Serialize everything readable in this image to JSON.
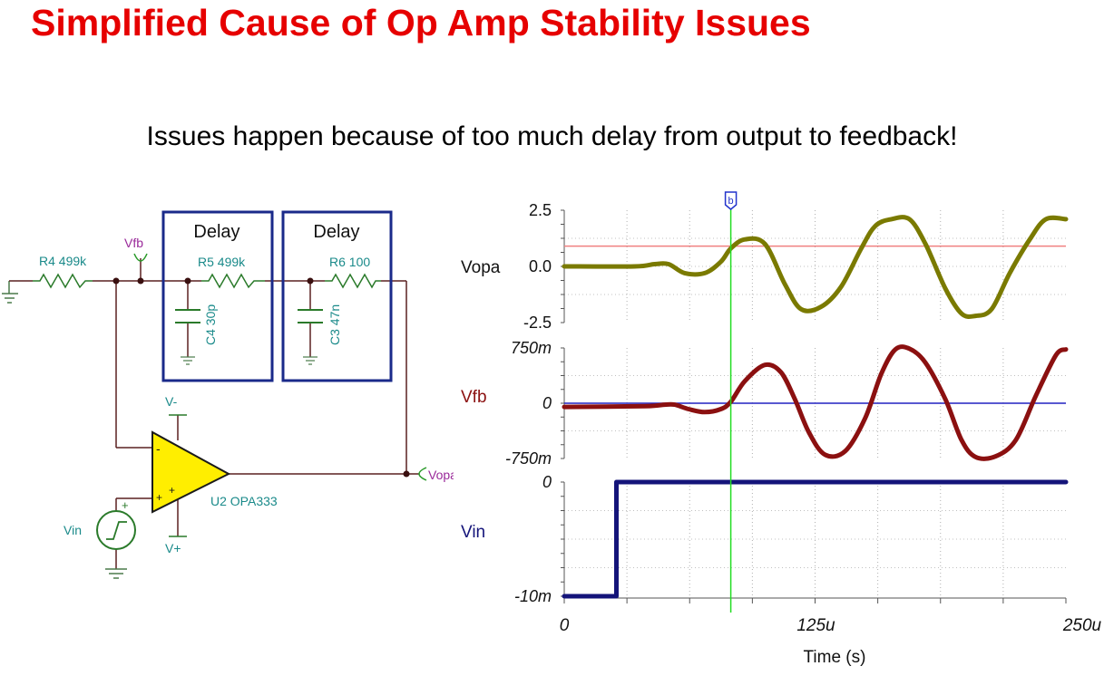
{
  "title": "Simplified Cause of Op Amp Stability Issues",
  "subtitle": "Issues happen because of too much delay from output to feedback!",
  "schematic": {
    "delay_box_1": "Delay",
    "delay_box_2": "Delay",
    "r4": "R4 499k",
    "r5": "R5 499k",
    "r6": "R6 100",
    "c4": "C4 30p",
    "c3": "C3 47n",
    "vfb_probe": "Vfb",
    "vopa_probe": "Vopa",
    "vin_source": "Vin",
    "vminus": "V-",
    "vplus": "V+",
    "opamp": "U2 OPA333",
    "pin_minus": "-",
    "pin_plus": "+",
    "pin_plus_small": "+",
    "src_plus": "+"
  },
  "chart_data": {
    "type": "line",
    "xlabel": "Time (s)",
    "xlim": [
      0,
      250
    ],
    "x_unit": "u",
    "x_ticks": [
      "0",
      "125u",
      "250u"
    ],
    "cursor": {
      "label": "b",
      "x": 83
    },
    "panels": [
      {
        "name": "Vopa",
        "ylim": [
          -2.5,
          2.5
        ],
        "y_ticks": [
          "2.5",
          "0.0",
          "-2.5"
        ],
        "color": "#7a7a00",
        "reference_line": {
          "y": 0.9,
          "color": "#f08080"
        },
        "x": [
          0,
          35,
          45,
          52,
          60,
          70,
          78,
          83,
          90,
          100,
          110,
          118,
          128,
          138,
          148,
          155,
          163,
          172,
          180,
          190,
          198,
          205,
          213,
          222,
          232,
          240,
          250
        ],
        "y": [
          0.0,
          0.0,
          0.1,
          0.1,
          -0.3,
          -0.3,
          0.2,
          0.8,
          1.2,
          1.0,
          -0.8,
          -1.9,
          -1.8,
          -0.9,
          0.8,
          1.8,
          2.1,
          2.1,
          1.0,
          -1.0,
          -2.1,
          -2.2,
          -1.9,
          -0.3,
          1.2,
          2.1,
          2.1
        ]
      },
      {
        "name": "Vfb",
        "ylim": [
          -750,
          750
        ],
        "y_unit": "m",
        "y_ticks": [
          "750m",
          "0",
          "-750m"
        ],
        "color": "#8b1010",
        "reference_line": {
          "y": 0,
          "color": "#2020c0"
        },
        "x": [
          0,
          40,
          50,
          55,
          62,
          70,
          78,
          83,
          90,
          100,
          108,
          115,
          122,
          130,
          140,
          150,
          158,
          165,
          172,
          180,
          190,
          198,
          205,
          215,
          225,
          235,
          245,
          250
        ],
        "y": [
          -50,
          -40,
          -20,
          -20,
          -80,
          -120,
          -80,
          20,
          300,
          520,
          420,
          50,
          -400,
          -700,
          -650,
          -200,
          400,
          730,
          740,
          550,
          50,
          -500,
          -730,
          -720,
          -500,
          100,
          650,
          730
        ]
      },
      {
        "name": "Vin",
        "ylim": [
          -10,
          0
        ],
        "y_unit": "m",
        "y_ticks": [
          "0",
          "-10m"
        ],
        "color": "#14147a",
        "x": [
          0,
          26,
          26,
          250
        ],
        "y": [
          -10,
          -10,
          0,
          0
        ]
      }
    ]
  }
}
